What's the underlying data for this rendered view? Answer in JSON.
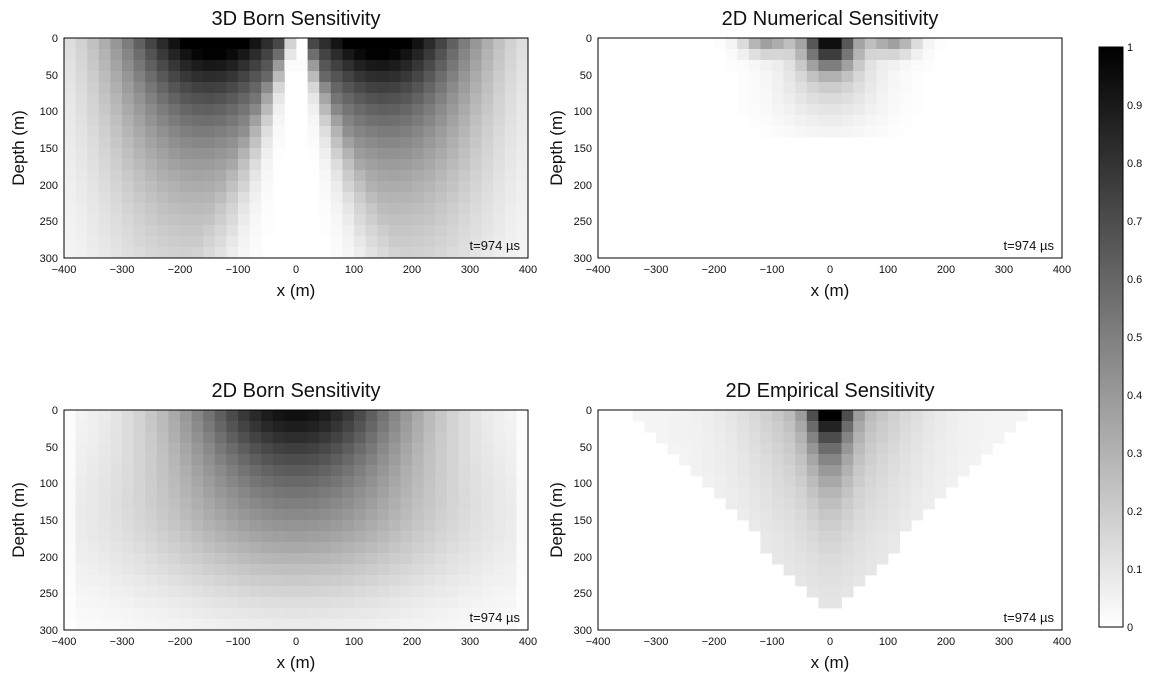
{
  "chart_data": [
    {
      "type": "heatmap",
      "title": "3D Born Sensitivity",
      "xlabel": "x (m)",
      "ylabel": "Depth (m)",
      "xlim": [
        -400,
        400
      ],
      "ylim": [
        0,
        300
      ],
      "y_inverted": true,
      "xticks": [
        "−400",
        "−300",
        "−200",
        "−100",
        "0",
        "100",
        "200",
        "300",
        "400"
      ],
      "yticks": [
        "0",
        "50",
        "100",
        "150",
        "200",
        "250",
        "300"
      ],
      "annotation": "t=974 µs",
      "pattern": "born3d",
      "value_range": [
        0,
        1
      ],
      "colormap": "gray-reversed"
    },
    {
      "type": "heatmap",
      "title": "2D Numerical Sensitivity",
      "xlabel": "x (m)",
      "ylabel": "Depth (m)",
      "xlim": [
        -400,
        400
      ],
      "ylim": [
        0,
        300
      ],
      "y_inverted": true,
      "xticks": [
        "−400",
        "−300",
        "−200",
        "−100",
        "0",
        "100",
        "200",
        "300",
        "400"
      ],
      "yticks": [
        "0",
        "50",
        "100",
        "150",
        "200",
        "250",
        "300"
      ],
      "annotation": "t=974 µs",
      "pattern": "numerical2d",
      "value_range": [
        0,
        1
      ],
      "colormap": "gray-reversed"
    },
    {
      "type": "heatmap",
      "title": "2D Born Sensitivity",
      "xlabel": "x (m)",
      "ylabel": "Depth (m)",
      "xlim": [
        -400,
        400
      ],
      "ylim": [
        0,
        300
      ],
      "y_inverted": true,
      "xticks": [
        "−400",
        "−300",
        "−200",
        "−100",
        "0",
        "100",
        "200",
        "300",
        "400"
      ],
      "yticks": [
        "0",
        "50",
        "100",
        "150",
        "200",
        "250",
        "300"
      ],
      "annotation": "t=974 µs",
      "pattern": "born2d",
      "value_range": [
        0,
        1
      ],
      "colormap": "gray-reversed"
    },
    {
      "type": "heatmap",
      "title": "2D Empirical Sensitivity",
      "xlabel": "x (m)",
      "ylabel": "Depth (m)",
      "xlim": [
        -400,
        400
      ],
      "ylim": [
        0,
        300
      ],
      "y_inverted": true,
      "xticks": [
        "−400",
        "−300",
        "−200",
        "−100",
        "0",
        "100",
        "200",
        "300",
        "400"
      ],
      "yticks": [
        "0",
        "50",
        "100",
        "150",
        "200",
        "250",
        "300"
      ],
      "annotation": "t=974 µs",
      "pattern": "empirical2d",
      "value_range": [
        0,
        1
      ],
      "colormap": "gray-reversed"
    }
  ],
  "colorbar": {
    "range": [
      0,
      1
    ],
    "ticks": [
      "0",
      "0.1",
      "0.2",
      "0.3",
      "0.4",
      "0.5",
      "0.6",
      "0.7",
      "0.8",
      "0.9",
      "1"
    ]
  }
}
